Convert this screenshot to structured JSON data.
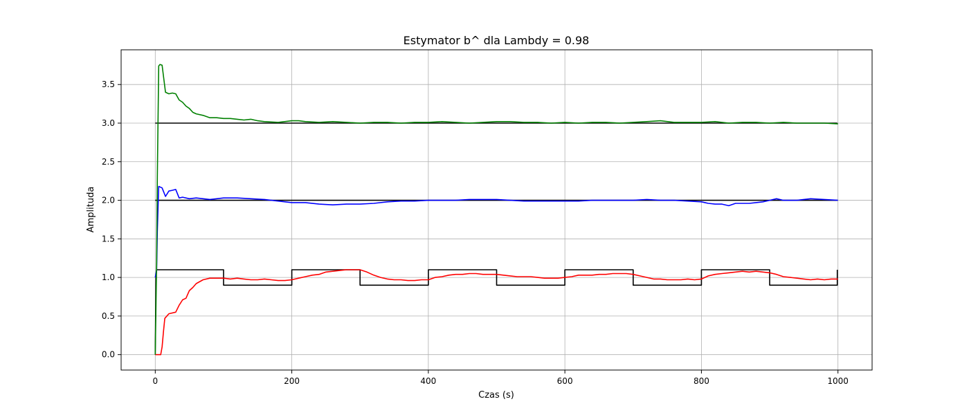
{
  "chart_data": {
    "type": "line",
    "title": "Estymator b^ dla Lambdy = 0.98",
    "xlabel": "Czas (s)",
    "ylabel": "Amplituda",
    "xlim": [
      -50,
      1050
    ],
    "ylim": [
      -0.2,
      3.95
    ],
    "xticks": [
      0,
      200,
      400,
      600,
      800,
      1000
    ],
    "xtick_labels": [
      "0",
      "200",
      "400",
      "600",
      "800",
      "1000"
    ],
    "yticks": [
      0.0,
      0.5,
      1.0,
      1.5,
      2.0,
      2.5,
      3.0,
      3.5
    ],
    "ytick_labels": [
      "0.0",
      "0.5",
      "1.0",
      "1.5",
      "2.0",
      "2.5",
      "3.0",
      "3.5"
    ],
    "grid": true,
    "legend": false,
    "series": [
      {
        "color": "#000000",
        "x": [
          0,
          1,
          2,
          3,
          100,
          100,
          200,
          200,
          300,
          300,
          400,
          400,
          500,
          500,
          600,
          600,
          700,
          700,
          800,
          800,
          900,
          900,
          999,
          999
        ],
        "y": [
          0,
          1.0,
          1.1,
          1.1,
          1.1,
          0.9,
          0.9,
          1.1,
          1.1,
          0.9,
          0.9,
          1.1,
          1.1,
          0.9,
          0.9,
          1.1,
          1.1,
          0.9,
          0.9,
          1.1,
          1.1,
          0.9,
          0.9,
          1.1
        ]
      },
      {
        "color": "#000000",
        "x": [
          0,
          999
        ],
        "y": [
          2.0,
          2.0
        ]
      },
      {
        "color": "#000000",
        "x": [
          0,
          999
        ],
        "y": [
          3.0,
          3.0
        ]
      },
      {
        "color": "#ff0000",
        "x": [
          0,
          3,
          8,
          10,
          12,
          14,
          20,
          30,
          35,
          40,
          45,
          50,
          55,
          60,
          70,
          80,
          90,
          100,
          110,
          120,
          130,
          140,
          150,
          160,
          170,
          180,
          190,
          200,
          210,
          220,
          230,
          240,
          250,
          260,
          270,
          280,
          290,
          300,
          310,
          320,
          330,
          340,
          350,
          360,
          370,
          380,
          390,
          400,
          410,
          420,
          430,
          440,
          450,
          460,
          470,
          480,
          490,
          500,
          510,
          520,
          530,
          540,
          550,
          560,
          570,
          580,
          590,
          600,
          610,
          620,
          630,
          640,
          650,
          660,
          670,
          680,
          690,
          700,
          710,
          720,
          730,
          740,
          750,
          760,
          770,
          780,
          790,
          800,
          810,
          820,
          830,
          840,
          850,
          860,
          870,
          880,
          890,
          900,
          910,
          920,
          930,
          940,
          950,
          960,
          970,
          980,
          990,
          1000
        ],
        "y": [
          0.0,
          0.0,
          0.0,
          0.1,
          0.3,
          0.47,
          0.53,
          0.55,
          0.64,
          0.71,
          0.73,
          0.83,
          0.87,
          0.92,
          0.97,
          0.99,
          0.99,
          0.99,
          0.98,
          0.99,
          0.98,
          0.97,
          0.97,
          0.98,
          0.97,
          0.96,
          0.96,
          0.97,
          0.99,
          1.01,
          1.03,
          1.04,
          1.07,
          1.08,
          1.09,
          1.1,
          1.1,
          1.1,
          1.07,
          1.03,
          1.0,
          0.98,
          0.97,
          0.97,
          0.96,
          0.96,
          0.97,
          0.97,
          1.0,
          1.01,
          1.03,
          1.04,
          1.04,
          1.05,
          1.05,
          1.04,
          1.04,
          1.04,
          1.03,
          1.02,
          1.01,
          1.01,
          1.01,
          1.0,
          0.99,
          0.99,
          0.99,
          1.0,
          1.01,
          1.03,
          1.03,
          1.03,
          1.04,
          1.04,
          1.05,
          1.05,
          1.05,
          1.04,
          1.02,
          1.0,
          0.98,
          0.98,
          0.97,
          0.97,
          0.97,
          0.98,
          0.97,
          0.98,
          1.02,
          1.04,
          1.05,
          1.06,
          1.07,
          1.08,
          1.07,
          1.08,
          1.07,
          1.06,
          1.04,
          1.01,
          1.0,
          0.99,
          0.98,
          0.97,
          0.98,
          0.97,
          0.98,
          0.98
        ]
      },
      {
        "color": "#0000ff",
        "x": [
          0,
          2,
          3,
          5,
          10,
          15,
          20,
          25,
          30,
          35,
          40,
          50,
          60,
          70,
          80,
          100,
          120,
          140,
          160,
          180,
          200,
          220,
          240,
          260,
          280,
          300,
          320,
          340,
          360,
          380,
          400,
          420,
          440,
          460,
          480,
          500,
          520,
          540,
          560,
          580,
          600,
          620,
          640,
          660,
          680,
          700,
          720,
          740,
          760,
          780,
          800,
          810,
          820,
          830,
          840,
          850,
          860,
          870,
          880,
          890,
          900,
          910,
          920,
          940,
          960,
          980,
          1000
        ],
        "y": [
          1.0,
          1.1,
          1.6,
          2.18,
          2.16,
          2.05,
          2.12,
          2.13,
          2.14,
          2.03,
          2.04,
          2.02,
          2.03,
          2.02,
          2.01,
          2.03,
          2.03,
          2.02,
          2.01,
          1.99,
          1.97,
          1.97,
          1.95,
          1.94,
          1.95,
          1.95,
          1.96,
          1.98,
          1.99,
          1.99,
          2.0,
          2.0,
          2.0,
          2.01,
          2.01,
          2.01,
          2.0,
          1.99,
          1.99,
          1.99,
          1.99,
          1.99,
          2.0,
          2.0,
          2.0,
          2.0,
          2.01,
          2.0,
          2.0,
          1.99,
          1.98,
          1.96,
          1.95,
          1.95,
          1.93,
          1.96,
          1.96,
          1.96,
          1.97,
          1.98,
          2.0,
          2.02,
          2.0,
          2.0,
          2.02,
          2.01,
          2.0
        ]
      },
      {
        "color": "#008000",
        "x": [
          0,
          2,
          3,
          5,
          7,
          10,
          15,
          20,
          25,
          30,
          35,
          40,
          45,
          50,
          55,
          60,
          70,
          80,
          90,
          100,
          110,
          120,
          130,
          140,
          150,
          160,
          180,
          200,
          210,
          220,
          240,
          260,
          280,
          300,
          320,
          340,
          360,
          380,
          400,
          420,
          440,
          460,
          480,
          500,
          520,
          540,
          560,
          580,
          600,
          620,
          640,
          660,
          680,
          700,
          720,
          740,
          760,
          780,
          800,
          820,
          840,
          860,
          880,
          900,
          920,
          940,
          960,
          980,
          1000
        ],
        "y": [
          0.0,
          1.2,
          2.3,
          3.74,
          3.76,
          3.75,
          3.4,
          3.38,
          3.39,
          3.38,
          3.3,
          3.27,
          3.22,
          3.19,
          3.14,
          3.12,
          3.1,
          3.07,
          3.07,
          3.06,
          3.06,
          3.05,
          3.04,
          3.05,
          3.03,
          3.02,
          3.01,
          3.03,
          3.03,
          3.02,
          3.01,
          3.02,
          3.01,
          3.0,
          3.01,
          3.01,
          3.0,
          3.01,
          3.01,
          3.02,
          3.01,
          3.0,
          3.01,
          3.02,
          3.02,
          3.01,
          3.01,
          3.0,
          3.01,
          3.0,
          3.01,
          3.01,
          3.0,
          3.01,
          3.02,
          3.03,
          3.01,
          3.01,
          3.01,
          3.02,
          3.0,
          3.01,
          3.01,
          3.0,
          3.01,
          3.0,
          3.0,
          3.0,
          2.99
        ]
      }
    ]
  }
}
